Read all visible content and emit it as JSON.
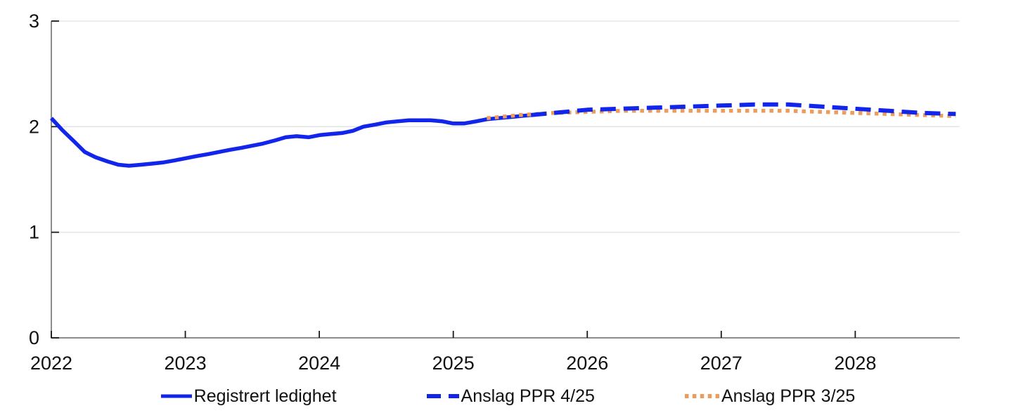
{
  "chart_data": {
    "type": "line",
    "title": "",
    "xlabel": "",
    "ylabel": "",
    "ylim": [
      0,
      3
    ],
    "xlim": [
      2022,
      2028.78
    ],
    "yticks": [
      "0",
      "1",
      "2",
      "3"
    ],
    "ytick_values": [
      0,
      1,
      2,
      3
    ],
    "xticks": [
      "2022",
      "2023",
      "2024",
      "2025",
      "2026",
      "2027",
      "2028"
    ],
    "xtick_values": [
      2022,
      2023,
      2024,
      2025,
      2026,
      2027,
      2028
    ],
    "grid": "horizontal",
    "legend_position": "bottom",
    "colors": {
      "blue": "#1126ea",
      "orange": "#ed9c5c",
      "gridline": "#e2e2e2",
      "axis": "#8c8c8c",
      "tick": "#1a1a1a",
      "text": "#111111"
    },
    "series": [
      {
        "name": "Registrert ledighet",
        "color": "#1126ea",
        "style": "solid",
        "z": 1,
        "x": [
          2022.0,
          2022.08,
          2022.17,
          2022.25,
          2022.33,
          2022.42,
          2022.5,
          2022.58,
          2022.67,
          2022.75,
          2022.83,
          2022.92,
          2023.0,
          2023.08,
          2023.17,
          2023.25,
          2023.33,
          2023.42,
          2023.5,
          2023.58,
          2023.67,
          2023.75,
          2023.83,
          2023.92,
          2024.0,
          2024.08,
          2024.17,
          2024.25,
          2024.33,
          2024.42,
          2024.5,
          2024.58,
          2024.67,
          2024.75,
          2024.83,
          2024.92,
          2025.0,
          2025.08,
          2025.17,
          2025.25,
          2025.33,
          2025.42,
          2025.5,
          2025.58
        ],
        "y": [
          2.08,
          1.97,
          1.86,
          1.76,
          1.71,
          1.67,
          1.64,
          1.63,
          1.64,
          1.65,
          1.66,
          1.68,
          1.7,
          1.72,
          1.74,
          1.76,
          1.78,
          1.8,
          1.82,
          1.84,
          1.87,
          1.9,
          1.91,
          1.9,
          1.92,
          1.93,
          1.94,
          1.96,
          2.0,
          2.02,
          2.04,
          2.05,
          2.06,
          2.06,
          2.06,
          2.05,
          2.03,
          2.03,
          2.05,
          2.07,
          2.08,
          2.09,
          2.1,
          2.11
        ]
      },
      {
        "name": "Anslag PPR 4/25",
        "color": "#1126ea",
        "style": "dashed",
        "z": 3,
        "x": [
          2025.58,
          2025.75,
          2026.0,
          2026.25,
          2026.5,
          2026.75,
          2027.0,
          2027.25,
          2027.5,
          2027.75,
          2028.0,
          2028.25,
          2028.5,
          2028.75
        ],
        "y": [
          2.11,
          2.13,
          2.16,
          2.17,
          2.18,
          2.19,
          2.2,
          2.21,
          2.21,
          2.19,
          2.17,
          2.15,
          2.13,
          2.12
        ]
      },
      {
        "name": "Anslag PPR 3/25",
        "color": "#ed9c5c",
        "style": "dotted",
        "z": 2,
        "x": [
          2025.25,
          2025.5,
          2025.75,
          2026.0,
          2026.25,
          2026.5,
          2026.75,
          2027.0,
          2027.25,
          2027.5,
          2027.75,
          2028.0,
          2028.25,
          2028.5,
          2028.75
        ],
        "y": [
          2.08,
          2.11,
          2.13,
          2.14,
          2.15,
          2.15,
          2.15,
          2.15,
          2.15,
          2.15,
          2.14,
          2.13,
          2.12,
          2.11,
          2.1
        ]
      }
    ]
  }
}
